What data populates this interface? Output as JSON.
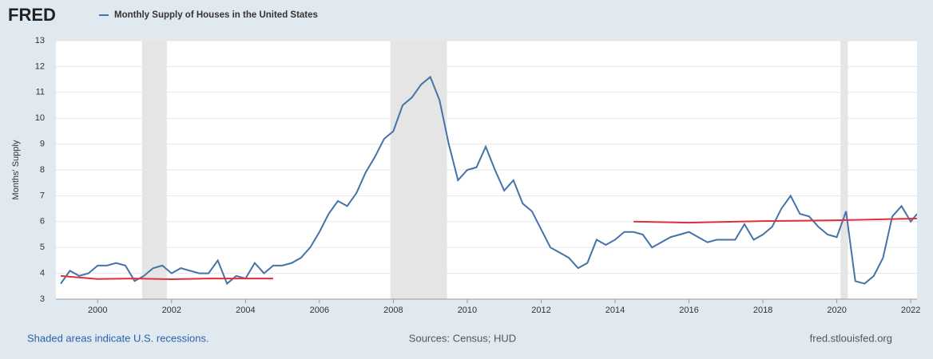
{
  "chart_data": {
    "type": "line",
    "brand": "FRED",
    "title": "Monthly Supply of Houses in the United States",
    "ylabel": "Months' Supply",
    "footer_left": "Shaded areas indicate U.S. recessions.",
    "footer_center": "Sources: Census; HUD",
    "footer_right": "fred.stlouisfed.org",
    "xlim": [
      1998.87,
      2022.17
    ],
    "ylim": [
      3,
      13
    ],
    "xticks": [
      2000,
      2002,
      2004,
      2006,
      2008,
      2010,
      2012,
      2014,
      2016,
      2018,
      2020,
      2022
    ],
    "yticks": [
      3,
      4,
      5,
      6,
      7,
      8,
      9,
      10,
      11,
      12,
      13
    ],
    "grid": true,
    "recessions": [
      [
        2001.2,
        2001.87
      ],
      [
        2007.92,
        2009.45
      ],
      [
        2020.1,
        2020.3
      ]
    ],
    "recession_color": "#e5e5e5",
    "series": [
      {
        "name": "Monthly Supply of Houses in the United States",
        "color": "#4572a7",
        "x": [
          1999,
          1999.25,
          1999.5,
          1999.75,
          2000,
          2000.25,
          2000.5,
          2000.75,
          2001,
          2001.25,
          2001.5,
          2001.75,
          2002,
          2002.25,
          2002.5,
          2002.75,
          2003,
          2003.25,
          2003.5,
          2003.75,
          2004,
          2004.25,
          2004.5,
          2004.75,
          2005,
          2005.25,
          2005.5,
          2005.75,
          2006,
          2006.25,
          2006.5,
          2006.75,
          2007,
          2007.25,
          2007.5,
          2007.75,
          2008,
          2008.25,
          2008.5,
          2008.75,
          2009,
          2009.25,
          2009.5,
          2009.75,
          2010,
          2010.25,
          2010.5,
          2010.75,
          2011,
          2011.25,
          2011.5,
          2011.75,
          2012,
          2012.25,
          2012.5,
          2012.75,
          2013,
          2013.25,
          2013.5,
          2013.75,
          2014,
          2014.25,
          2014.5,
          2014.75,
          2015,
          2015.25,
          2015.5,
          2015.75,
          2016,
          2016.25,
          2016.5,
          2016.75,
          2017,
          2017.25,
          2017.5,
          2017.75,
          2018,
          2018.25,
          2018.5,
          2018.75,
          2019,
          2019.25,
          2019.5,
          2019.75,
          2020,
          2020.25,
          2020.5,
          2020.75,
          2021,
          2021.25,
          2021.5,
          2021.75,
          2022,
          2022.17
        ],
        "values": [
          3.6,
          4.1,
          3.9,
          4.0,
          4.3,
          4.3,
          4.4,
          4.3,
          3.7,
          3.9,
          4.2,
          4.3,
          4.0,
          4.2,
          4.1,
          4.0,
          4.0,
          4.5,
          3.6,
          3.9,
          3.8,
          4.4,
          4.0,
          4.3,
          4.3,
          4.4,
          4.6,
          5.0,
          5.6,
          6.3,
          6.8,
          6.6,
          7.1,
          7.9,
          8.5,
          9.2,
          9.5,
          10.5,
          10.8,
          11.3,
          11.6,
          10.7,
          9.0,
          7.6,
          8.0,
          8.1,
          8.9,
          8.0,
          7.2,
          7.6,
          6.7,
          6.4,
          5.7,
          5.0,
          4.8,
          4.6,
          4.2,
          4.4,
          5.3,
          5.1,
          5.3,
          5.6,
          5.6,
          5.5,
          5.0,
          5.2,
          5.4,
          5.5,
          5.6,
          5.4,
          5.2,
          5.3,
          5.3,
          5.3,
          5.9,
          5.3,
          5.5,
          5.8,
          6.5,
          7.0,
          6.3,
          6.2,
          5.8,
          5.5,
          5.4,
          6.4,
          3.7,
          3.6,
          3.9,
          4.6,
          6.2,
          6.6,
          6.0,
          6.3
        ]
      },
      {
        "color": "#e0303c",
        "x": [
          1999,
          2000,
          2001,
          2002,
          2003,
          2004,
          2004.75,
          2009,
          2014.5,
          2016,
          2018,
          2020,
          2022.17
        ],
        "values": [
          3.9,
          3.78,
          3.8,
          3.77,
          3.8,
          3.8,
          3.8,
          null,
          6.0,
          5.96,
          6.02,
          6.05,
          6.12
        ]
      }
    ]
  }
}
